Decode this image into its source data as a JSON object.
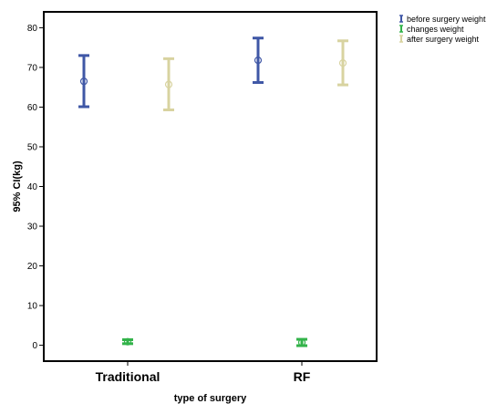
{
  "chart_data": {
    "type": "errorbar",
    "xlabel": "type of surgery",
    "ylabel": "95% CI(kg)",
    "ylim": [
      -4,
      84
    ],
    "yticks": [
      0,
      10,
      20,
      30,
      40,
      50,
      60,
      70,
      80
    ],
    "categories": [
      "Traditional",
      "RF"
    ],
    "grid": false,
    "legend_position": "top-right outside",
    "series": [
      {
        "name": "before surgery weight",
        "color": "#3f57a6",
        "mean": [
          66.5,
          71.8
        ],
        "lower": [
          60.1,
          66.2
        ],
        "upper": [
          73.0,
          77.4
        ]
      },
      {
        "name": "changes weight",
        "color": "#33b34a",
        "mean": [
          0.9,
          0.7
        ],
        "lower": [
          0.4,
          -0.1
        ],
        "upper": [
          1.4,
          1.5
        ]
      },
      {
        "name": "after surgery weight",
        "color": "#d8d3a0",
        "mean": [
          65.7,
          71.1
        ],
        "lower": [
          59.3,
          65.6
        ],
        "upper": [
          72.2,
          76.7
        ]
      }
    ]
  }
}
